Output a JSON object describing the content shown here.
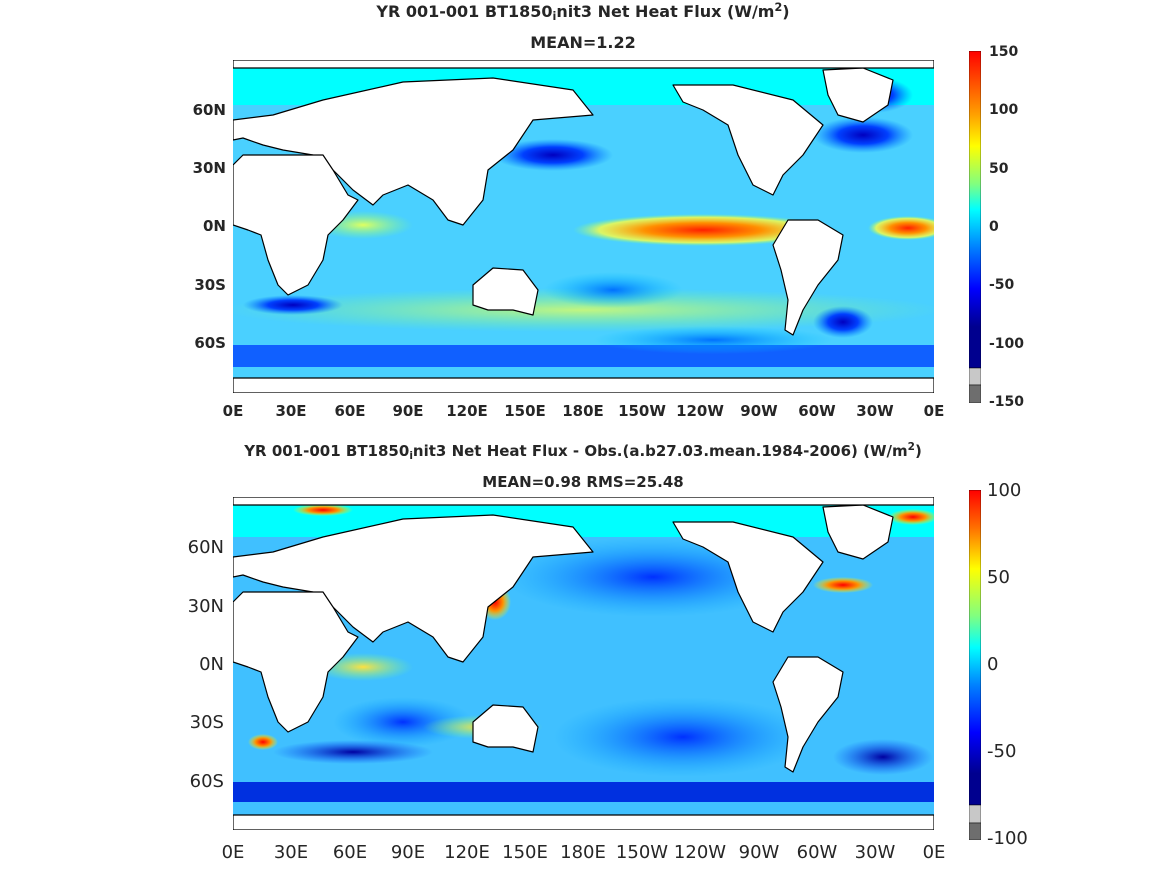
{
  "panels": [
    {
      "title_main": "YR 001-001 BT1850",
      "title_sub": "i",
      "title_rest": "nit3  Net Heat Flux (W/m",
      "title_sup": "2",
      "title_close": ")",
      "stats": "MEAN=1.22",
      "colorbar_labels": [
        "150",
        "100",
        "50",
        "0",
        "-50",
        "-100",
        "-150"
      ]
    },
    {
      "title_main": "YR 001-001 BT1850",
      "title_sub": "i",
      "title_rest": "nit3  Net Heat Flux - Obs.(a.b27.03.mean.1984-2006) (W/m",
      "title_sup": "2",
      "title_close": ")",
      "stats": "MEAN=0.98 RMS=25.48",
      "colorbar_labels": [
        "100",
        "50",
        "0",
        "-50",
        "-100"
      ]
    }
  ],
  "axes": {
    "y_ticks": [
      "60N",
      "30N",
      "0N",
      "30S",
      "60S"
    ],
    "x_ticks": [
      "0E",
      "30E",
      "60E",
      "90E",
      "120E",
      "150E",
      "180E",
      "150W",
      "120W",
      "90W",
      "60W",
      "30W",
      "0E"
    ]
  },
  "colors": {
    "jet": [
      "#00008f",
      "#0000ff",
      "#0080ff",
      "#00ffff",
      "#80ff80",
      "#ffff00",
      "#ff8000",
      "#ff0000",
      "#800000"
    ],
    "missing_light": "#c8c8c8",
    "missing_dark": "#6e6e6e",
    "land": "#ffffff",
    "coast": "#000000"
  }
}
